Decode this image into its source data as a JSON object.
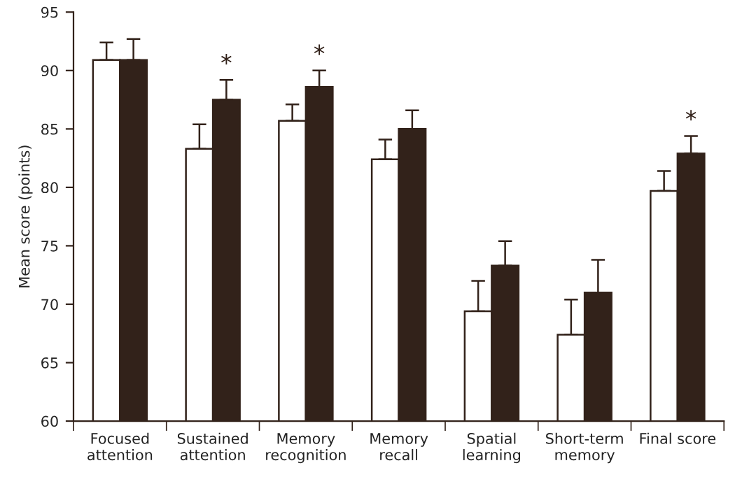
{
  "chart_data": {
    "type": "bar",
    "ylabel": "Mean score (points)",
    "categories": [
      "Focused\nattention",
      "Sustained\nattention",
      "Memory\nrecognition",
      "Memory\nrecall",
      "Spatial\nlearning",
      "Short-term\nmemory",
      "Final score"
    ],
    "series": [
      {
        "color": "#ffffff",
        "values": [
          90.9,
          83.3,
          85.7,
          82.4,
          69.4,
          67.4,
          79.7
        ],
        "errors": [
          [
            90.9,
            92.4
          ],
          [
            83.3,
            85.4
          ],
          [
            85.7,
            87.1
          ],
          [
            82.4,
            84.1
          ],
          [
            69.4,
            72.0
          ],
          [
            67.4,
            70.4
          ],
          [
            79.7,
            81.4
          ]
        ]
      },
      {
        "color": "#32221a",
        "values": [
          90.9,
          87.5,
          88.6,
          85.0,
          73.3,
          71.0,
          82.9
        ],
        "value_labels": [
          null,
          "*",
          "*",
          null,
          null,
          null,
          "*"
        ],
        "errors": [
          [
            90.9,
            92.7
          ],
          [
            87.5,
            89.2
          ],
          [
            88.6,
            90.0
          ],
          [
            85.0,
            86.6
          ],
          [
            73.3,
            75.4
          ],
          [
            71.0,
            73.8
          ],
          [
            82.9,
            84.4
          ]
        ]
      }
    ],
    "ylim": [
      60,
      95
    ],
    "yticks": [
      60,
      65,
      70,
      75,
      80,
      85,
      90,
      95
    ],
    "grid": false
  }
}
